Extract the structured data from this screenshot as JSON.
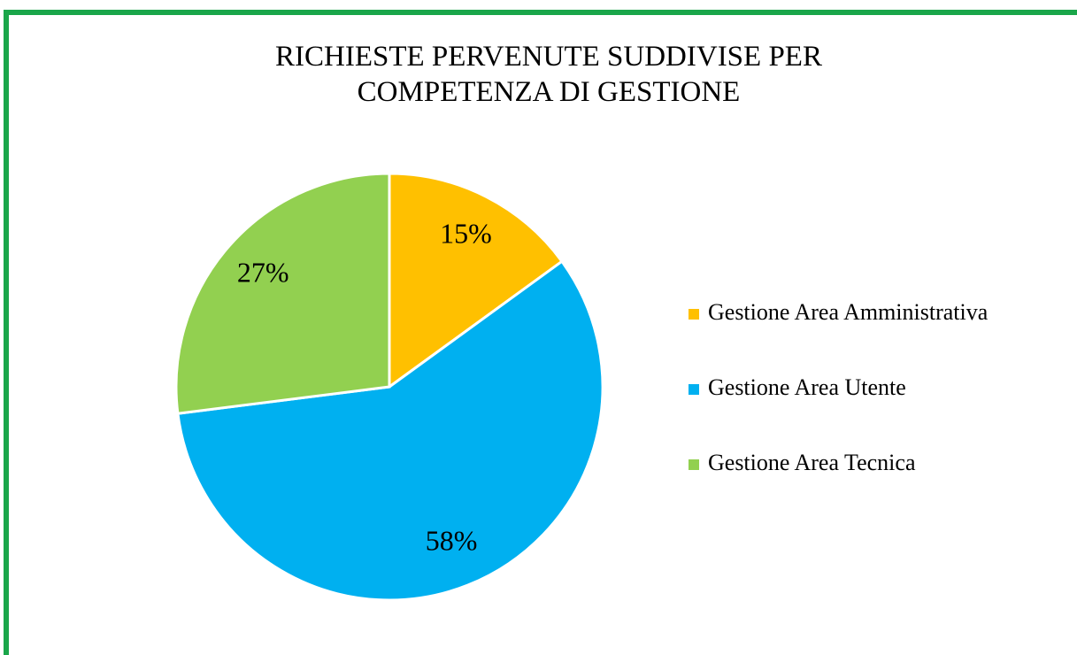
{
  "chart_data": {
    "type": "pie",
    "title": "RICHIESTE PERVENUTE SUDDIVISE PER COMPETENZA DI GESTIONE",
    "categories": [
      "Gestione Area Amministrativa",
      "Gestione Area Utente",
      "Gestione Area Tecnica"
    ],
    "values": [
      15,
      58,
      27
    ],
    "value_labels": [
      "15%",
      "58%",
      "27%"
    ],
    "colors": [
      "#ffc000",
      "#00b0f0",
      "#92d050"
    ],
    "legend": "right"
  }
}
